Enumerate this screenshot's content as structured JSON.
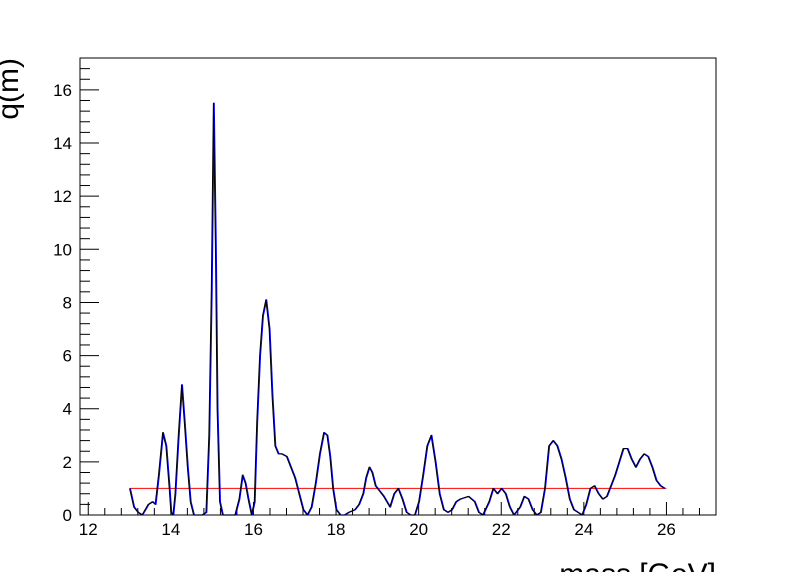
{
  "chart_data": {
    "type": "line",
    "title": "",
    "xlabel": "mass [GeV]",
    "ylabel": "q(m)",
    "xlim": [
      11.8,
      27.2
    ],
    "ylim": [
      0,
      17.2
    ],
    "x_ticks": [
      12,
      14,
      16,
      18,
      20,
      22,
      24,
      26
    ],
    "y_ticks": [
      0,
      2,
      4,
      6,
      8,
      10,
      12,
      14,
      16
    ],
    "grid": false,
    "legend": "none",
    "colors": {
      "signal": "#000000",
      "overlay": "#0000ff",
      "threshold": "#ff0000",
      "frame": "#000000"
    },
    "series": [
      {
        "x": [
          13.0,
          13.1,
          13.2,
          13.3,
          13.45,
          13.55,
          13.62,
          13.7,
          13.8,
          13.88,
          13.96,
          14.0,
          14.05,
          14.1,
          14.18,
          14.26,
          14.33,
          14.4,
          14.47,
          14.55,
          14.65,
          14.75,
          14.85,
          14.92,
          14.98,
          15.03,
          15.08,
          15.12,
          15.18,
          15.25,
          15.35,
          15.45,
          15.55,
          15.65,
          15.73,
          15.8,
          15.87,
          15.95,
          16.02,
          16.08,
          16.15,
          16.22,
          16.3,
          16.38,
          16.45,
          16.52,
          16.6,
          16.68,
          16.8,
          16.9,
          17.0,
          17.1,
          17.2,
          17.3,
          17.4,
          17.5,
          17.6,
          17.7,
          17.78,
          17.85,
          17.92,
          18.0,
          18.1,
          18.2,
          18.3,
          18.45,
          18.55,
          18.65,
          18.72,
          18.8,
          18.87,
          18.95,
          19.05,
          19.15,
          19.3,
          19.4,
          19.5,
          19.6,
          19.7,
          19.8,
          19.9,
          20.0,
          20.1,
          20.2,
          20.3,
          20.4,
          20.5,
          20.6,
          20.7,
          20.8,
          20.9,
          21.0,
          21.2,
          21.35,
          21.45,
          21.55,
          21.7,
          21.8,
          21.9,
          22.0,
          22.1,
          22.2,
          22.3,
          22.45,
          22.55,
          22.65,
          22.75,
          22.85,
          22.95,
          23.05,
          23.15,
          23.25,
          23.35,
          23.45,
          23.55,
          23.65,
          23.75,
          23.85,
          23.95,
          24.05,
          24.15,
          24.25,
          24.35,
          24.45,
          24.55,
          24.65,
          24.75,
          24.85,
          24.95,
          25.05,
          25.15,
          25.25,
          25.35,
          25.45,
          25.55,
          25.65,
          25.75,
          25.85,
          25.95
        ],
        "y": [
          1.0,
          0.3,
          0.1,
          0.0,
          0.4,
          0.5,
          0.4,
          1.5,
          3.1,
          2.6,
          1.0,
          0.1,
          0.0,
          0.8,
          3.0,
          4.9,
          3.4,
          1.8,
          0.5,
          0.0,
          0.0,
          0.0,
          0.1,
          3.0,
          8.5,
          15.5,
          10.0,
          4.0,
          0.5,
          0.0,
          0.0,
          0.0,
          0.0,
          0.6,
          1.5,
          1.2,
          0.6,
          0.0,
          0.5,
          3.5,
          6.0,
          7.5,
          8.1,
          7.0,
          4.5,
          2.6,
          2.3,
          2.3,
          2.2,
          1.8,
          1.4,
          0.8,
          0.2,
          0.0,
          0.3,
          1.2,
          2.3,
          3.1,
          3.0,
          2.2,
          1.0,
          0.2,
          0.0,
          0.0,
          0.1,
          0.2,
          0.4,
          0.8,
          1.4,
          1.8,
          1.6,
          1.1,
          0.9,
          0.7,
          0.3,
          0.8,
          1.0,
          0.6,
          0.1,
          0.0,
          0.0,
          0.5,
          1.5,
          2.6,
          3.0,
          2.0,
          0.8,
          0.2,
          0.1,
          0.2,
          0.5,
          0.6,
          0.7,
          0.5,
          0.1,
          0.0,
          0.5,
          1.0,
          0.8,
          1.0,
          0.8,
          0.3,
          0.0,
          0.3,
          0.7,
          0.6,
          0.2,
          0.0,
          0.1,
          1.0,
          2.6,
          2.8,
          2.6,
          2.1,
          1.4,
          0.6,
          0.2,
          0.1,
          0.0,
          0.4,
          1.0,
          1.1,
          0.8,
          0.6,
          0.7,
          1.1,
          1.5,
          2.0,
          2.5,
          2.5,
          2.1,
          1.8,
          2.1,
          2.3,
          2.2,
          1.8,
          1.3,
          1.1,
          1.0
        ]
      }
    ],
    "threshold": {
      "x": [
        13.0,
        26.0
      ],
      "y": [
        1.0,
        1.0
      ]
    }
  }
}
